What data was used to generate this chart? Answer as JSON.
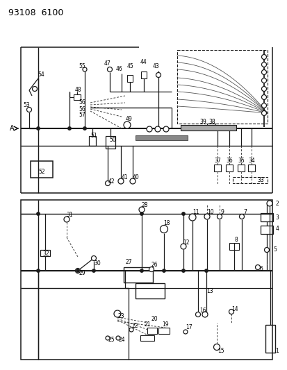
{
  "title": "93108  6100",
  "bg": "#ffffff",
  "lc": "#1a1a1a",
  "dc": "#444444",
  "fs": 5.5,
  "figsize": [
    4.14,
    5.33
  ],
  "dpi": 100
}
